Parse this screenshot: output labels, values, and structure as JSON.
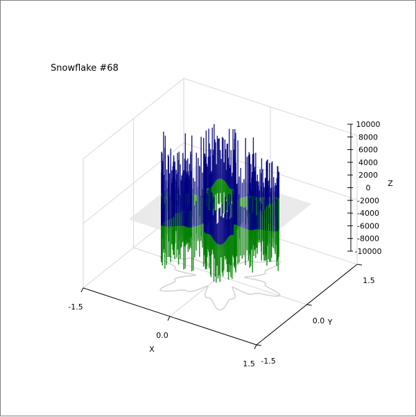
{
  "chart_data": {
    "type": "surface3d",
    "title": "Snowflake #68",
    "xlabel": "X",
    "ylabel": "Y",
    "zlabel": "Z",
    "xlim": [
      -1.5,
      1.5
    ],
    "ylim": [
      -1.5,
      1.5
    ],
    "zlim": [
      -10000,
      10000
    ],
    "x_ticks": [
      "-1.5",
      "0.0",
      "1.5"
    ],
    "y_ticks": [
      "-1.5",
      "0.0",
      "1.5"
    ],
    "z_ticks": [
      "10000",
      "8000",
      "6000",
      "4000",
      "2000",
      "0",
      "-2000",
      "-4000",
      "-6000",
      "-8000",
      "-10000"
    ],
    "grid": true,
    "z0_plane_color": "#e6e6e6",
    "positive_color": "#000080",
    "negative_color": "#008000",
    "outline_color": "#d0d0d0"
  }
}
